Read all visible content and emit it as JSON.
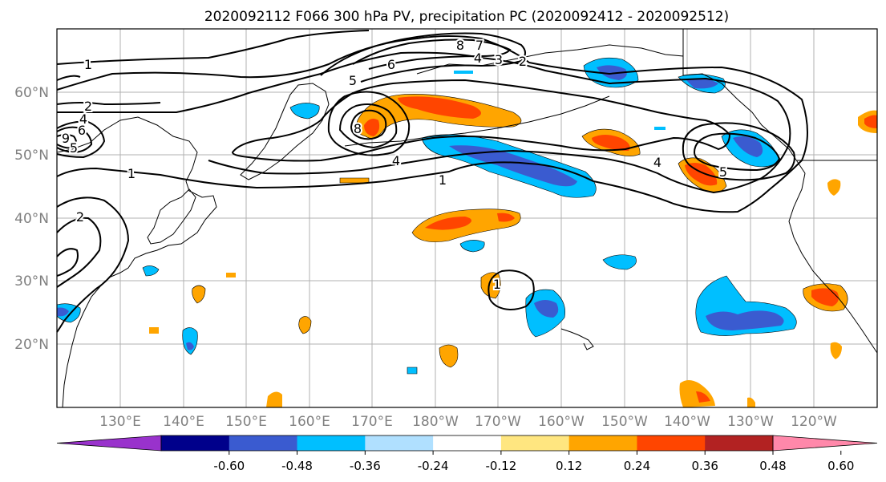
{
  "title": "2020092112 F066 300 hPa PV, precipitation PC (2020092412 - 2020092512)",
  "lat_labels": [
    "60°N",
    "50°N",
    "40°N",
    "30°N",
    "20°N"
  ],
  "lon_labels": [
    "130°E",
    "140°E",
    "150°E",
    "160°E",
    "170°E",
    "180°W",
    "170°W",
    "160°W",
    "150°W",
    "140°W",
    "130°W",
    "120°W"
  ],
  "colorbar": {
    "ticks": [
      "-0.60",
      "-0.48",
      "-0.36",
      "-0.24",
      "-0.12",
      "0.12",
      "0.24",
      "0.36",
      "0.48",
      "0.60"
    ],
    "colors": [
      "#9932cc",
      "#00008b",
      "#3a5bd0",
      "#00bfff",
      "#b0e0ff",
      "#ffffff",
      "#ffe680",
      "#ffa500",
      "#ff4500",
      "#b22222",
      "#ff88aa"
    ]
  },
  "contour_labels": [
    "1",
    "2",
    "4",
    "6",
    "5",
    "8",
    "7",
    "4",
    "3",
    "2",
    "6",
    "5",
    "4",
    "1",
    "1",
    "2",
    "4",
    "5",
    "1",
    "8",
    "9"
  ],
  "colors": {
    "axis_label": "#808080",
    "grid": "#b0b0b0",
    "contour": "#000000",
    "coast": "#000000"
  }
}
